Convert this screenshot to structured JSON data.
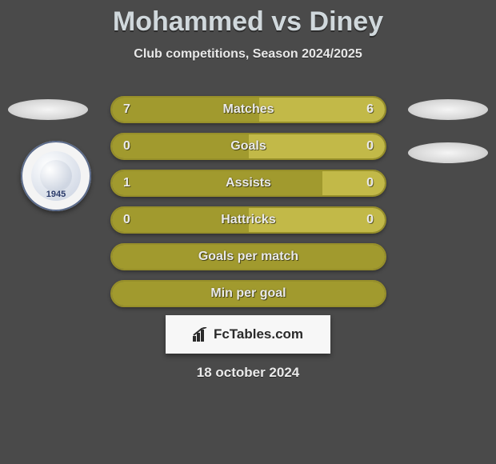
{
  "title": "Mohammed vs Diney",
  "subtitle": "Club competitions, Season 2024/2025",
  "club_year": "1945",
  "date": "18 october 2024",
  "brand": "FcTables.com",
  "colors": {
    "left_fill": "#a19a2e",
    "right_fill": "#c2b948",
    "bar_border": "#978f2a",
    "background": "#4a4a4a",
    "text": "#eaeaea"
  },
  "bars": [
    {
      "label": "Matches",
      "left_val": "7",
      "right_val": "6",
      "left_pct": 54,
      "right_pct": 46,
      "show_vals": true
    },
    {
      "label": "Goals",
      "left_val": "0",
      "right_val": "0",
      "left_pct": 50,
      "right_pct": 50,
      "show_vals": true
    },
    {
      "label": "Assists",
      "left_val": "1",
      "right_val": "0",
      "left_pct": 77,
      "right_pct": 23,
      "show_vals": true
    },
    {
      "label": "Hattricks",
      "left_val": "0",
      "right_val": "0",
      "left_pct": 50,
      "right_pct": 50,
      "show_vals": true
    },
    {
      "label": "Goals per match",
      "left_val": "",
      "right_val": "",
      "left_pct": 100,
      "right_pct": 0,
      "show_vals": false
    },
    {
      "label": "Min per goal",
      "left_val": "",
      "right_val": "",
      "left_pct": 100,
      "right_pct": 0,
      "show_vals": false
    }
  ]
}
